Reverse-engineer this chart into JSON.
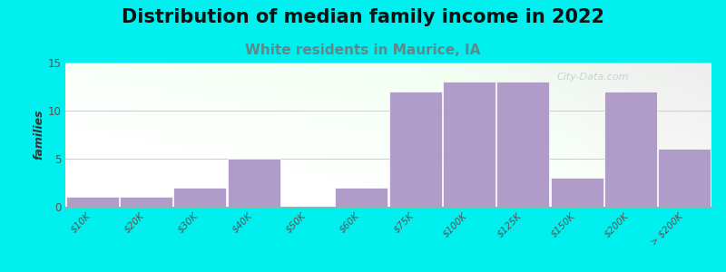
{
  "title": "Distribution of median family income in 2022",
  "subtitle": "White residents in Maurice, IA",
  "ylabel": "families",
  "background_color": "#00EFEF",
  "bar_color": "#b09cc8",
  "categories": [
    "$10K",
    "$20K",
    "$30K",
    "$40K",
    "$50K",
    "$60K",
    "$75K",
    "$100K",
    "$125K",
    "$150K",
    "$200K",
    "> $200K"
  ],
  "values": [
    1,
    1,
    2,
    5,
    0,
    2,
    12,
    13,
    13,
    3,
    12,
    6
  ],
  "bar_lefts": [
    0,
    1,
    2,
    3,
    4,
    5,
    6,
    7,
    8,
    9,
    10,
    11
  ],
  "bar_widths": [
    1,
    1,
    1,
    1,
    1,
    1,
    1,
    1,
    1,
    1,
    1,
    1
  ],
  "xlim": [
    0,
    12
  ],
  "ylim": [
    0,
    15
  ],
  "yticks": [
    0,
    5,
    10,
    15
  ],
  "xtick_positions": [
    0.5,
    1.5,
    2.5,
    3.5,
    4.5,
    5.5,
    6.5,
    7.5,
    8.5,
    9.5,
    10.5,
    11.5
  ],
  "watermark": "City-Data.com",
  "title_fontsize": 15,
  "subtitle_fontsize": 11,
  "ylabel_fontsize": 9,
  "tick_fontsize": 7.5,
  "subtitle_color": "#5a8a8a",
  "title_color": "#111111",
  "watermark_color": "#c0d0d0"
}
